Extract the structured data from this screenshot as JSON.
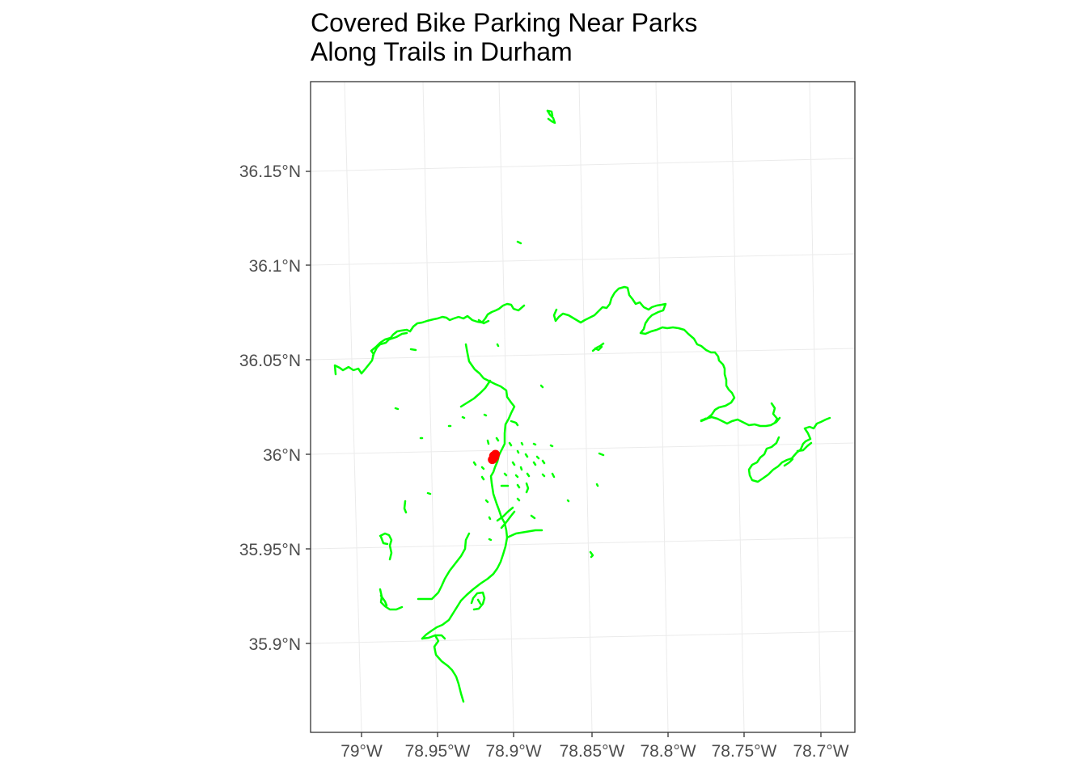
{
  "title_line1": "Covered Bike Parking Near Parks",
  "title_line2": "Along Trails in Durham",
  "y_axis": {
    "ticks": [
      {
        "value": 36.15,
        "label": "36.15°N"
      },
      {
        "value": 36.1,
        "label": "36.1°N"
      },
      {
        "value": 36.05,
        "label": "36.05°N"
      },
      {
        "value": 36.0,
        "label": "36°N"
      },
      {
        "value": 35.95,
        "label": "35.95°N"
      },
      {
        "value": 35.9,
        "label": "35.9°N"
      }
    ]
  },
  "x_axis": {
    "ticks": [
      {
        "value": -79.0,
        "label": "79°W"
      },
      {
        "value": -78.95,
        "label": "78.95°W"
      },
      {
        "value": -78.9,
        "label": "78.9°W"
      },
      {
        "value": -78.85,
        "label": "78.85°W"
      },
      {
        "value": -78.8,
        "label": "78.8°W"
      },
      {
        "value": -78.75,
        "label": "78.75°W"
      },
      {
        "value": -78.7,
        "label": "78.7°W"
      }
    ]
  },
  "colors": {
    "trails": "#00ff00",
    "bike_parking": "#ff0000",
    "grid": "#ebebeb",
    "panel_border": "#333333"
  },
  "chart_data": {
    "type": "scatter",
    "layers": [
      {
        "name": "trails",
        "geometry": "lines"
      },
      {
        "name": "covered bike parking",
        "geometry": "points"
      }
    ],
    "bike_parking_points": [
      {
        "lon": -78.908,
        "lat": 35.995
      },
      {
        "lon": -78.9085,
        "lat": 35.9945
      },
      {
        "lon": -78.909,
        "lat": 35.9942
      },
      {
        "lon": -78.9075,
        "lat": 35.9955
      },
      {
        "lon": -78.907,
        "lat": 35.997
      },
      {
        "lon": -78.9082,
        "lat": 35.9962
      }
    ],
    "xlim": [
      -79.025,
      -78.69
    ],
    "ylim": [
      35.86,
      36.195
    ],
    "grid": true,
    "legend": "none"
  }
}
